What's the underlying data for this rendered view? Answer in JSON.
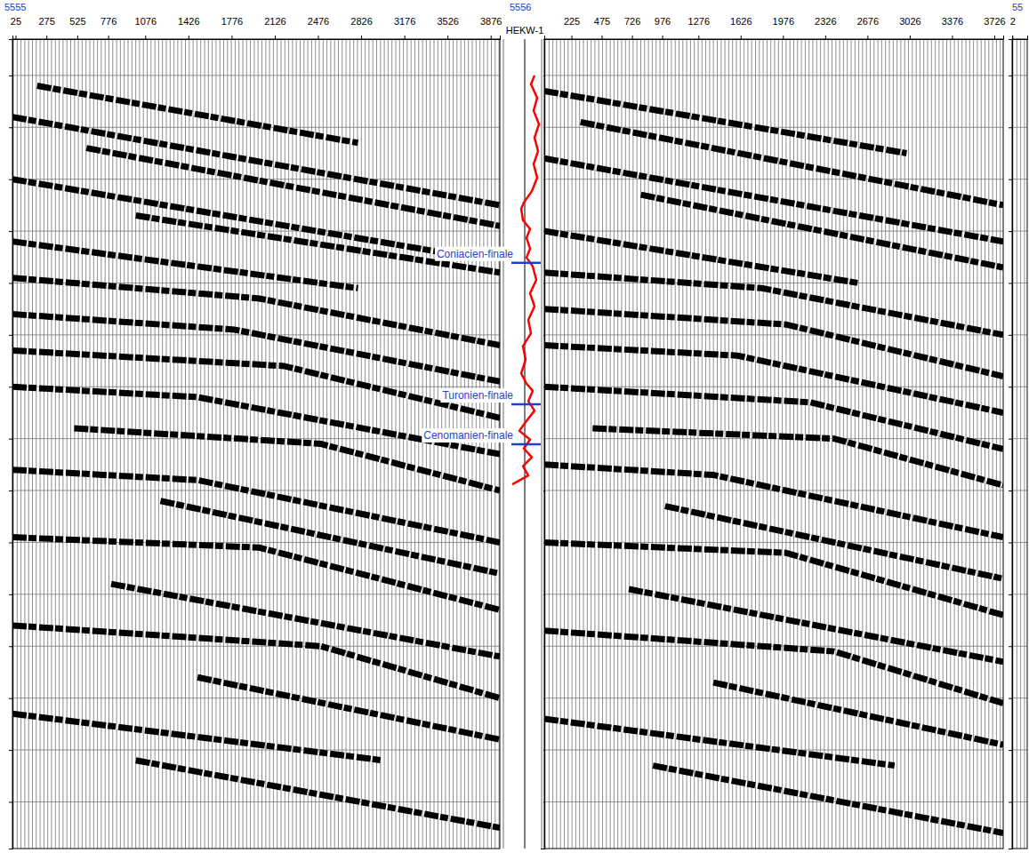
{
  "chart_data": [
    {
      "type": "seismic-section",
      "title": "5555",
      "xlim": [
        0,
        3950
      ],
      "xticks": [
        25,
        275,
        525,
        776,
        1076,
        1426,
        1776,
        2126,
        2476,
        2826,
        3176,
        3526,
        3876
      ],
      "ylim": [
        -0.7,
        14.9
      ],
      "yticks": [
        0,
        1,
        2,
        3,
        4,
        5,
        6,
        7,
        8,
        9,
        10,
        11,
        12,
        13,
        14
      ],
      "grid": true,
      "tick_labels": "x",
      "color": "#000000",
      "reflectors": [
        {
          "x": [
            200,
            2800
          ],
          "y": [
            0.2,
            1.3
          ]
        },
        {
          "x": [
            0,
            3950
          ],
          "y": [
            0.8,
            2.5
          ]
        },
        {
          "x": [
            600,
            3950
          ],
          "y": [
            1.4,
            2.9
          ]
        },
        {
          "x": [
            0,
            3700
          ],
          "y": [
            2.0,
            3.5
          ]
        },
        {
          "x": [
            1000,
            3950
          ],
          "y": [
            2.7,
            3.8
          ]
        },
        {
          "x": [
            0,
            2800
          ],
          "y": [
            3.2,
            4.1
          ]
        },
        {
          "x": [
            0,
            2000,
            3950
          ],
          "y": [
            3.9,
            4.3,
            5.2
          ]
        },
        {
          "x": [
            0,
            1800,
            3950
          ],
          "y": [
            4.6,
            4.9,
            5.9
          ]
        },
        {
          "x": [
            0,
            2200,
            3950
          ],
          "y": [
            5.3,
            5.6,
            6.6
          ]
        },
        {
          "x": [
            0,
            1500,
            3950
          ],
          "y": [
            6.0,
            6.2,
            7.3
          ]
        },
        {
          "x": [
            500,
            2500,
            3950
          ],
          "y": [
            6.8,
            7.1,
            8.0
          ]
        },
        {
          "x": [
            0,
            1500,
            3950
          ],
          "y": [
            7.6,
            7.8,
            9.0
          ]
        },
        {
          "x": [
            1200,
            3950
          ],
          "y": [
            8.2,
            9.6
          ]
        },
        {
          "x": [
            0,
            2000,
            3950
          ],
          "y": [
            8.9,
            9.1,
            10.3
          ]
        },
        {
          "x": [
            800,
            3950
          ],
          "y": [
            9.8,
            11.2
          ]
        },
        {
          "x": [
            0,
            2500,
            3950
          ],
          "y": [
            10.6,
            11.0,
            12.0
          ]
        },
        {
          "x": [
            1500,
            3950
          ],
          "y": [
            11.6,
            12.8
          ]
        },
        {
          "x": [
            0,
            3000
          ],
          "y": [
            12.3,
            13.2
          ]
        },
        {
          "x": [
            1000,
            3950
          ],
          "y": [
            13.2,
            14.5
          ]
        }
      ]
    },
    {
      "type": "seismic-section",
      "title": "5556",
      "xlim": [
        0,
        3800
      ],
      "xticks": [
        225,
        475,
        726,
        976,
        1276,
        1626,
        1976,
        2326,
        2676,
        3026,
        3376,
        3726
      ],
      "ylim": [
        -0.7,
        14.9
      ],
      "yticks": [
        0,
        1,
        2,
        3,
        4,
        5,
        6,
        7,
        8,
        9,
        10,
        11,
        12,
        13,
        14
      ],
      "grid": true,
      "tick_labels": "x",
      "color": "#000000",
      "reflectors": [
        {
          "x": [
            0,
            3000
          ],
          "y": [
            0.3,
            1.5
          ]
        },
        {
          "x": [
            300,
            3800
          ],
          "y": [
            0.9,
            2.5
          ]
        },
        {
          "x": [
            0,
            3800
          ],
          "y": [
            1.6,
            3.2
          ]
        },
        {
          "x": [
            800,
            3800
          ],
          "y": [
            2.3,
            3.7
          ]
        },
        {
          "x": [
            0,
            2600
          ],
          "y": [
            3.0,
            4.0
          ]
        },
        {
          "x": [
            0,
            1800,
            3800
          ],
          "y": [
            3.8,
            4.1,
            5.0
          ]
        },
        {
          "x": [
            0,
            2000,
            3800
          ],
          "y": [
            4.5,
            4.8,
            5.8
          ]
        },
        {
          "x": [
            0,
            1600,
            3800
          ],
          "y": [
            5.2,
            5.4,
            6.5
          ]
        },
        {
          "x": [
            0,
            2200,
            3800
          ],
          "y": [
            6.0,
            6.3,
            7.2
          ]
        },
        {
          "x": [
            400,
            2400,
            3800
          ],
          "y": [
            6.8,
            7.0,
            7.9
          ]
        },
        {
          "x": [
            0,
            1400,
            3800
          ],
          "y": [
            7.5,
            7.7,
            8.9
          ]
        },
        {
          "x": [
            1000,
            3800
          ],
          "y": [
            8.3,
            9.7
          ]
        },
        {
          "x": [
            0,
            2000,
            3800
          ],
          "y": [
            9.0,
            9.2,
            10.4
          ]
        },
        {
          "x": [
            700,
            3800
          ],
          "y": [
            9.9,
            11.3
          ]
        },
        {
          "x": [
            0,
            2400,
            3800
          ],
          "y": [
            10.7,
            11.1,
            12.1
          ]
        },
        {
          "x": [
            1400,
            3800
          ],
          "y": [
            11.7,
            12.9
          ]
        },
        {
          "x": [
            0,
            2900
          ],
          "y": [
            12.4,
            13.3
          ]
        },
        {
          "x": [
            900,
            3800
          ],
          "y": [
            13.3,
            14.6
          ]
        }
      ]
    },
    {
      "type": "seismic-section",
      "title": "55",
      "xlim": [
        0,
        100
      ],
      "xticks": [
        2
      ],
      "ylim": [
        -0.7,
        14.9
      ],
      "yticks": [
        0,
        1,
        2,
        3,
        4,
        5,
        6,
        7,
        8,
        9,
        10,
        11,
        12,
        13,
        14
      ],
      "grid": true,
      "tick_labels": "x",
      "color": "#000000",
      "reflectors": []
    }
  ],
  "well": {
    "name": "HEKW-1",
    "log": {
      "color": "#ff0000",
      "xlim": [
        0,
        100
      ],
      "y": [
        0,
        0.17,
        0.43,
        0.68,
        0.94,
        1.2,
        1.46,
        1.71,
        1.97,
        2.23,
        2.45,
        2.57,
        2.79,
        2.96,
        3.13,
        3.34,
        3.51,
        3.68,
        3.94,
        4.2,
        4.45,
        4.71,
        4.97,
        5.22,
        5.48,
        5.74,
        5.94,
        6.08,
        6.28,
        6.46,
        6.68,
        6.85,
        7.02,
        7.19,
        7.36,
        7.53,
        7.71,
        7.88
      ],
      "values": [
        68,
        60,
        74,
        66,
        78,
        68,
        76,
        66,
        74,
        62,
        44,
        38,
        42,
        58,
        50,
        58,
        50,
        64,
        72,
        58,
        68,
        54,
        60,
        42,
        48,
        38,
        50,
        64,
        54,
        68,
        48,
        34,
        58,
        44,
        62,
        42,
        54,
        18
      ]
    },
    "tops": {
      "color": "#1f3fd0",
      "names": [
        "Coniacien-finale",
        "Turonien-finale",
        "Cenomanien-finale"
      ],
      "y": [
        3.61,
        6.34,
        7.11
      ]
    }
  }
}
